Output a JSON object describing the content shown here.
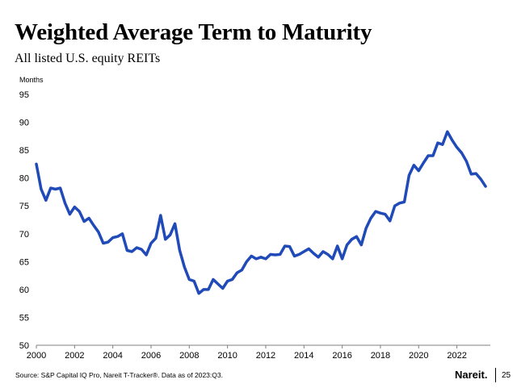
{
  "header": {
    "title": "Weighted Average Term to Maturity",
    "subtitle": "All listed U.S. equity REITs"
  },
  "footer": {
    "source": "Source: S&P Capital IQ Pro, Nareit T-Tracker®. Data as of 2023:Q3.",
    "logo_text": "Nareit.",
    "page_number": "25"
  },
  "colors": {
    "line": "#1f4ab8"
  },
  "chart_data": {
    "type": "line",
    "title": "Weighted Average Term to Maturity",
    "subtitle": "All listed U.S. equity REITs",
    "xlabel": "",
    "ylabel": "Months",
    "xlim": [
      2000,
      2023.75
    ],
    "ylim": [
      50,
      95
    ],
    "grid": false,
    "legend": "none",
    "x_ticks": [
      "2000",
      "2002",
      "2004",
      "2006",
      "2008",
      "2010",
      "2012",
      "2014",
      "2016",
      "2018",
      "2020",
      "2022"
    ],
    "y_ticks": [
      "50",
      "55",
      "60",
      "65",
      "70",
      "75",
      "80",
      "85",
      "90",
      "95"
    ],
    "series": [
      {
        "name": "Weighted Average Term to Maturity",
        "x": [
          2000.0,
          2000.25,
          2000.5,
          2000.75,
          2001.0,
          2001.25,
          2001.5,
          2001.75,
          2002.0,
          2002.25,
          2002.5,
          2002.75,
          2003.0,
          2003.25,
          2003.5,
          2003.75,
          2004.0,
          2004.25,
          2004.5,
          2004.75,
          2005.0,
          2005.25,
          2005.5,
          2005.75,
          2006.0,
          2006.25,
          2006.5,
          2006.75,
          2007.0,
          2007.25,
          2007.5,
          2007.75,
          2008.0,
          2008.25,
          2008.5,
          2008.75,
          2009.0,
          2009.25,
          2009.5,
          2009.75,
          2010.0,
          2010.25,
          2010.5,
          2010.75,
          2011.0,
          2011.25,
          2011.5,
          2011.75,
          2012.0,
          2012.25,
          2012.5,
          2012.75,
          2013.0,
          2013.25,
          2013.5,
          2013.75,
          2014.0,
          2014.25,
          2014.5,
          2014.75,
          2015.0,
          2015.25,
          2015.5,
          2015.75,
          2016.0,
          2016.25,
          2016.5,
          2016.75,
          2017.0,
          2017.25,
          2017.5,
          2017.75,
          2018.0,
          2018.25,
          2018.5,
          2018.75,
          2019.0,
          2019.25,
          2019.5,
          2019.75,
          2020.0,
          2020.25,
          2020.5,
          2020.75,
          2021.0,
          2021.25,
          2021.5,
          2021.75,
          2022.0,
          2022.25,
          2022.5,
          2022.75,
          2023.0,
          2023.25,
          2023.5
        ],
        "values": [
          82.5,
          78.0,
          76.0,
          78.2,
          78.0,
          78.2,
          75.5,
          73.5,
          74.8,
          74.0,
          72.2,
          72.8,
          71.5,
          70.3,
          68.3,
          68.5,
          69.3,
          69.5,
          70.0,
          67.0,
          66.8,
          67.5,
          67.2,
          66.2,
          68.3,
          69.2,
          73.3,
          69.0,
          69.8,
          71.8,
          67.0,
          64.0,
          61.8,
          61.5,
          59.3,
          60.0,
          60.0,
          61.8,
          61.0,
          60.2,
          61.5,
          61.8,
          63.0,
          63.5,
          65.0,
          66.0,
          65.5,
          65.8,
          65.5,
          66.3,
          66.2,
          66.3,
          67.8,
          67.7,
          66.0,
          66.3,
          66.8,
          67.3,
          66.5,
          65.8,
          66.8,
          66.3,
          65.5,
          67.8,
          65.5,
          68.0,
          69.0,
          69.5,
          68.0,
          71.0,
          72.8,
          74.0,
          73.7,
          73.5,
          72.3,
          75.0,
          75.5,
          75.7,
          80.5,
          82.3,
          81.3,
          82.7,
          84.0,
          84.0,
          86.3,
          86.0,
          88.3,
          86.8,
          85.5,
          84.5,
          83.0,
          80.7,
          80.8,
          79.8,
          78.5
        ]
      }
    ]
  }
}
